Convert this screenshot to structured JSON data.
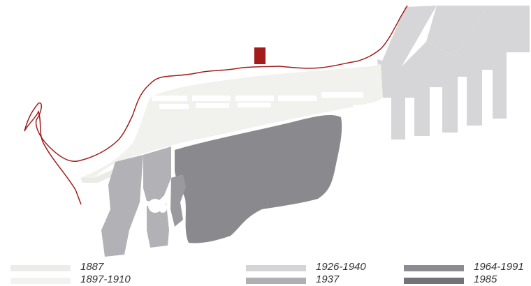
{
  "colors": {
    "coastline": "#a31c1c",
    "marker": "#a31c1c",
    "period_1887": "#f1f1ee",
    "period_1897_1910": "#f5f5f3",
    "period_1926_1940": "#d6d6d8",
    "period_1937": "#b2b2b6",
    "period_1964_1991": "#8a898d",
    "period_1985": "#737277"
  },
  "legend": [
    {
      "label": "1887",
      "color": "#ececea"
    },
    {
      "label": "1897-1910",
      "color": "#f2f2f0"
    },
    {
      "label": "1926-1940",
      "color": "#d4d4d6"
    },
    {
      "label": "1937",
      "color": "#b0b0b4"
    },
    {
      "label": "1964-1991",
      "color": "#8c8b8f"
    },
    {
      "label": "1985",
      "color": "#747378"
    }
  ]
}
